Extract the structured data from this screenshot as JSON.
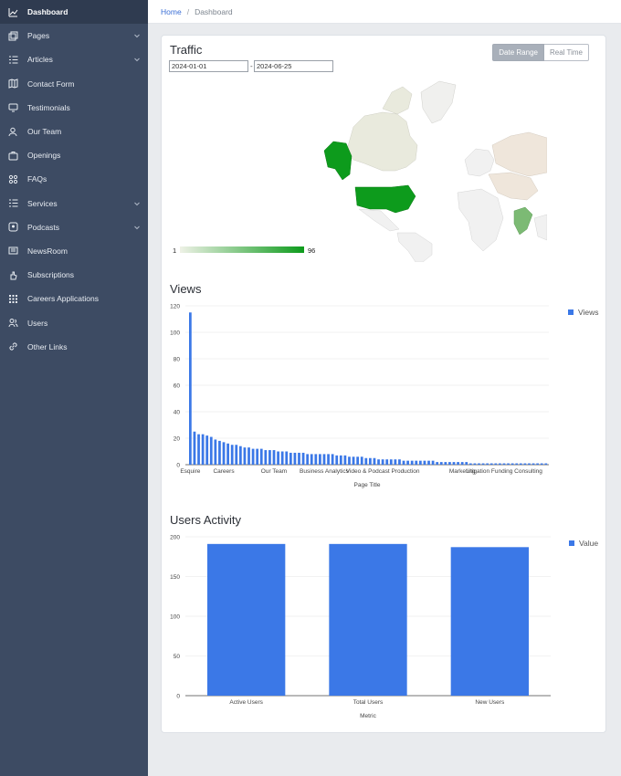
{
  "sidebar": {
    "items": [
      {
        "label": "Dashboard",
        "icon": "chart-line-icon",
        "active": true,
        "chevron": false
      },
      {
        "label": "Pages",
        "icon": "pages-icon",
        "active": false,
        "chevron": true
      },
      {
        "label": "Articles",
        "icon": "list-icon",
        "active": false,
        "chevron": true
      },
      {
        "label": "Contact Form",
        "icon": "map-icon",
        "active": false,
        "chevron": false
      },
      {
        "label": "Testimonials",
        "icon": "monitor-icon",
        "active": false,
        "chevron": false
      },
      {
        "label": "Our Team",
        "icon": "team-icon",
        "active": false,
        "chevron": false
      },
      {
        "label": "Openings",
        "icon": "briefcase-icon",
        "active": false,
        "chevron": false
      },
      {
        "label": "FAQs",
        "icon": "faq-icon",
        "active": false,
        "chevron": false
      },
      {
        "label": "Services",
        "icon": "list-icon",
        "active": false,
        "chevron": true
      },
      {
        "label": "Podcasts",
        "icon": "podcast-icon",
        "active": false,
        "chevron": true
      },
      {
        "label": "NewsRoom",
        "icon": "newspaper-icon",
        "active": false,
        "chevron": false
      },
      {
        "label": "Subscriptions",
        "icon": "hand-icon",
        "active": false,
        "chevron": false
      },
      {
        "label": "Careers Applications",
        "icon": "grid-icon",
        "active": false,
        "chevron": false
      },
      {
        "label": "Users",
        "icon": "users-icon",
        "active": false,
        "chevron": false
      },
      {
        "label": "Other Links",
        "icon": "link-icon",
        "active": false,
        "chevron": false
      }
    ]
  },
  "breadcrumb": {
    "home": "Home",
    "separator": "/",
    "current": "Dashboard"
  },
  "traffic": {
    "title": "Traffic",
    "date_from": "2024-01-01",
    "date_sep": "-",
    "date_to": "2024-06-25",
    "btn_range": "Date Range",
    "btn_realtime": "Real Time",
    "scale_min": "1",
    "scale_max": "96",
    "colors": {
      "high": "#0d9b1c",
      "mid": "#7cba74",
      "low": "#eef1e6",
      "none": "#f1f1f1"
    }
  },
  "views": {
    "title": "Views",
    "legend": "Views",
    "color": "#3b78e7"
  },
  "activity": {
    "title": "Users Activity",
    "legend": "Value",
    "color": "#3b78e7"
  },
  "chart_data": [
    {
      "type": "bar",
      "title": "Views",
      "xlabel": "Page Title",
      "ylabel": "",
      "ylim": [
        0,
        120
      ],
      "yticks": [
        0,
        20,
        40,
        60,
        80,
        100,
        120
      ],
      "tick_labels": [
        "Esquire",
        "Careers",
        "Our Team",
        "Business Analytics",
        "Video & Podcast Production",
        "Marketing",
        "Litigation Funding Consulting"
      ],
      "tick_positions": [
        0,
        8,
        20,
        32,
        46,
        65,
        75
      ],
      "series": [
        {
          "name": "Views",
          "values": [
            115,
            25,
            23,
            23,
            22,
            21,
            19,
            18,
            17,
            16,
            15,
            15,
            14,
            13,
            13,
            12,
            12,
            12,
            11,
            11,
            11,
            10,
            10,
            10,
            9,
            9,
            9,
            9,
            8,
            8,
            8,
            8,
            8,
            8,
            8,
            7,
            7,
            7,
            6,
            6,
            6,
            6,
            5,
            5,
            5,
            4,
            4,
            4,
            4,
            4,
            4,
            3,
            3,
            3,
            3,
            3,
            3,
            3,
            3,
            2,
            2,
            2,
            2,
            2,
            2,
            2,
            2,
            1,
            1,
            1,
            1,
            1,
            1,
            1,
            1,
            1,
            1,
            1,
            1,
            1,
            1,
            1,
            1,
            1,
            1,
            1
          ]
        }
      ]
    },
    {
      "type": "bar",
      "title": "Users Activity",
      "xlabel": "Metric",
      "ylabel": "",
      "ylim": [
        0,
        200
      ],
      "yticks": [
        0,
        50,
        100,
        150,
        200
      ],
      "categories": [
        "Active Users",
        "Total Users",
        "New Users"
      ],
      "series": [
        {
          "name": "Value",
          "values": [
            191,
            191,
            187
          ]
        }
      ]
    }
  ]
}
